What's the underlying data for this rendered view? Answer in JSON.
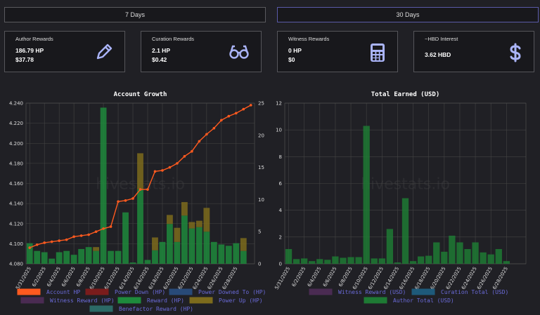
{
  "buttons": [
    "7 Days",
    "30 Days"
  ],
  "cards": [
    {
      "label": "Author Rewards",
      "line1": "186.79 HP",
      "line2": "$37.78"
    },
    {
      "label": "Curation Rewards",
      "line1": "2.1 HP",
      "line2": "$0.42"
    },
    {
      "label": "Witness Rewards",
      "line1": "0 HP",
      "line2": "$0"
    },
    {
      "label": "~HBD Interest",
      "line1": "3.62 HBD"
    }
  ],
  "watermark": "hivestats.io",
  "chart_data": [
    {
      "type": "combo",
      "title": "Account Growth",
      "categories": [
        "5/31/2025",
        null,
        "6/2/2025",
        null,
        "6/4/2025",
        null,
        "6/6/2025",
        null,
        "6/8/2025",
        null,
        "6/10/2025",
        null,
        "6/12/2025",
        null,
        "6/14/2025",
        null,
        "6/16/2025",
        null,
        "6/18/2025",
        null,
        "6/20/2025",
        null,
        "6/22/2025",
        null,
        "6/24/2025",
        null,
        "6/26/2025",
        null,
        "6/28/2025",
        null,
        null
      ],
      "ylim": [
        4.08,
        4.24
      ],
      "yticks": [
        {
          "value": 4.08,
          "label": "4.080"
        },
        {
          "value": 4.1,
          "label": "4.100"
        },
        {
          "value": 4.12,
          "label": "4.120"
        },
        {
          "value": 4.14,
          "label": "4.140"
        },
        {
          "value": 4.16,
          "label": "4.160"
        },
        {
          "value": 4.18,
          "label": "4.180"
        },
        {
          "value": 4.2,
          "label": "4.200"
        },
        {
          "value": 4.22,
          "label": "4.220"
        },
        {
          "value": 4.24,
          "label": "4.240"
        }
      ],
      "y2lim": [
        0,
        25
      ],
      "y2ticks": [
        0,
        5,
        10,
        15,
        20,
        25
      ],
      "grid": true,
      "series": [
        {
          "name": "Account HP",
          "color": "#ff5a1f",
          "kind": "line",
          "axis": "y",
          "values": [
            4.096,
            4.099,
            4.101,
            4.102,
            4.103,
            4.104,
            4.107,
            4.108,
            4.109,
            4.112,
            4.115,
            4.117,
            4.142,
            4.143,
            4.145,
            4.154,
            4.154,
            4.172,
            4.173,
            4.176,
            4.18,
            4.187,
            4.192,
            4.202,
            4.209,
            4.215,
            4.223,
            4.227,
            4.23,
            4.234,
            4.238
          ]
        },
        {
          "name": "Power Down (HP)",
          "color": "#7a1c1c"
        },
        {
          "name": "Power Downed To (HP)",
          "color": "#284a78"
        },
        {
          "name": "Witness Reward (HP)",
          "color": "#4a2b52"
        },
        {
          "name": "Reward (HP)",
          "color": "#1e8a3c",
          "kind": "bar",
          "axis": "y2",
          "values": [
            3.2,
            2.0,
            1.8,
            0.8,
            1.8,
            2.0,
            1.4,
            2.3,
            2.6,
            2.0,
            24.3,
            2.0,
            2.0,
            8.0,
            0.2,
            11.6,
            0.6,
            2.1,
            3.4,
            6.2,
            3.4,
            7.5,
            5.5,
            5.7,
            5.0,
            3.4,
            3.0,
            2.8,
            3.2,
            2.0,
            0
          ]
        },
        {
          "name": "Power Up (HP)",
          "color": "#7d6b1c",
          "kind": "bar",
          "axis": "y2",
          "values": [
            0,
            0,
            0,
            0,
            0,
            0,
            0,
            0,
            0,
            0.6,
            0,
            0,
            0,
            0,
            0,
            5.6,
            0,
            2.0,
            0,
            1.4,
            2.2,
            2.1,
            1.0,
            1.0,
            3.7,
            0,
            0,
            0,
            0,
            2.0,
            0
          ]
        },
        {
          "name": "Benefactor Reward (HP)",
          "color": "#2c6a66"
        }
      ]
    },
    {
      "type": "bar",
      "title": "Total Earned (USD)",
      "categories": [
        "5/31/2025",
        null,
        "6/2/2025",
        null,
        "6/4/2025",
        null,
        "6/6/2025",
        null,
        "6/8/2025",
        null,
        "6/10/2025",
        null,
        "6/12/2025",
        null,
        "6/14/2025",
        null,
        "6/16/2025",
        null,
        "6/18/2025",
        null,
        "6/20/2025",
        null,
        "6/22/2025",
        null,
        "6/24/2025",
        null,
        "6/26/2025",
        null,
        "6/28/2025",
        null,
        null
      ],
      "ylim": [
        0,
        12
      ],
      "yticks": [
        0,
        2,
        4,
        6,
        8,
        10,
        12
      ],
      "grid": true,
      "series": [
        {
          "name": "Witness Reward (USD)",
          "color": "#4a2b52"
        },
        {
          "name": "Curation Total (USD)",
          "color": "#1e5a7a"
        },
        {
          "name": "Author Total (USD)",
          "color": "#1e7a34",
          "kind": "bar",
          "values": [
            1.1,
            0.35,
            0.4,
            0.2,
            0.35,
            0.3,
            0.55,
            0.45,
            0.5,
            0.5,
            10.3,
            0.4,
            0.4,
            2.6,
            0.1,
            4.9,
            0.2,
            0.55,
            0.6,
            1.6,
            0.9,
            2.1,
            1.6,
            1.1,
            1.6,
            0.85,
            0.7,
            1.1,
            0.2,
            0,
            0
          ]
        }
      ]
    }
  ]
}
